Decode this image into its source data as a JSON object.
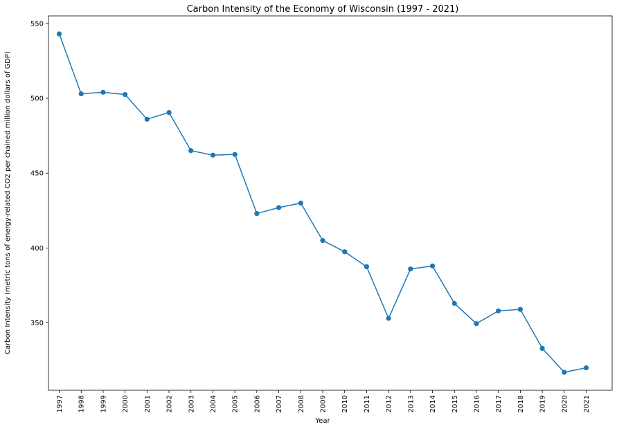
{
  "chart_data": {
    "type": "line",
    "title": "Carbon Intensity of the Economy of Wisconsin (1997 - 2021)",
    "xlabel": "Year",
    "ylabel": "Carbon Intensity (metric tons of energy-related CO2 per chained million dollars of GDP)",
    "categories": [
      "1997",
      "1998",
      "1999",
      "2000",
      "2001",
      "2002",
      "2003",
      "2004",
      "2005",
      "2006",
      "2007",
      "2008",
      "2009",
      "2010",
      "2011",
      "2012",
      "2013",
      "2014",
      "2015",
      "2016",
      "2017",
      "2018",
      "2019",
      "2020",
      "2021"
    ],
    "series": [
      {
        "values": [
          543,
          503,
          504,
          502.5,
          486,
          490.5,
          465,
          462,
          462.5,
          423,
          427,
          430,
          405,
          397.5,
          387.5,
          353,
          386,
          388,
          363,
          349.5,
          358,
          359,
          333,
          317,
          320
        ]
      }
    ],
    "ylim": [
      305,
      555
    ],
    "yticks": [
      350,
      400,
      450,
      500,
      550
    ],
    "grid": false,
    "legend": "none",
    "color": "#1f77b4"
  }
}
